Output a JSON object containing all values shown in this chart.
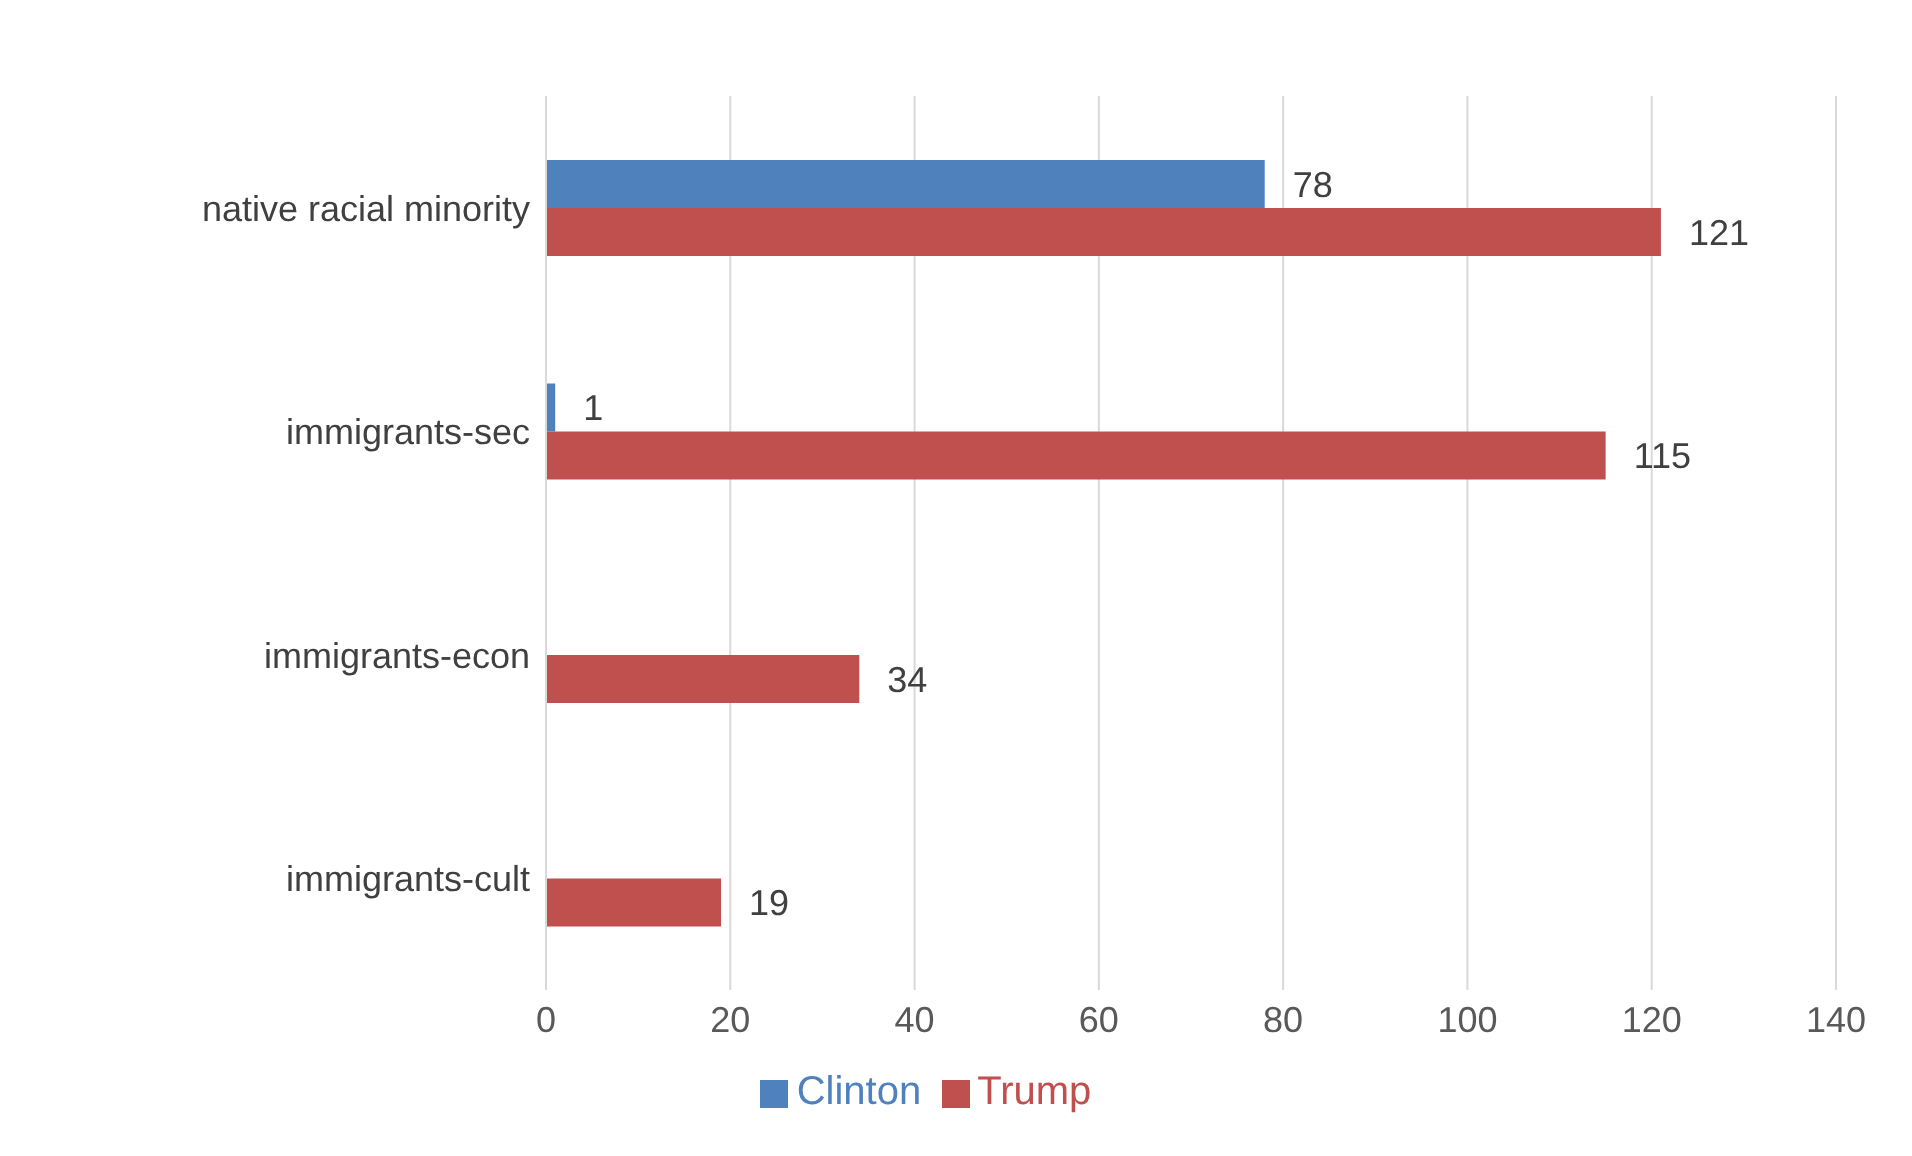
{
  "chart_data": {
    "type": "bar",
    "orientation": "horizontal",
    "categories": [
      "native racial minority",
      "immigrants-sec",
      "immigrants-econ",
      "immigrants-cult"
    ],
    "series": [
      {
        "name": "Clinton",
        "color": "#4f81bd",
        "values": [
          78,
          1,
          null,
          null
        ]
      },
      {
        "name": "Trump",
        "color": "#c0504d",
        "values": [
          121,
          115,
          34,
          19
        ]
      }
    ],
    "xlim": [
      0,
      140
    ],
    "xticks": [
      0,
      20,
      40,
      60,
      80,
      100,
      120,
      140
    ],
    "grid": "x",
    "legend": "bottom",
    "data_labels": true
  }
}
